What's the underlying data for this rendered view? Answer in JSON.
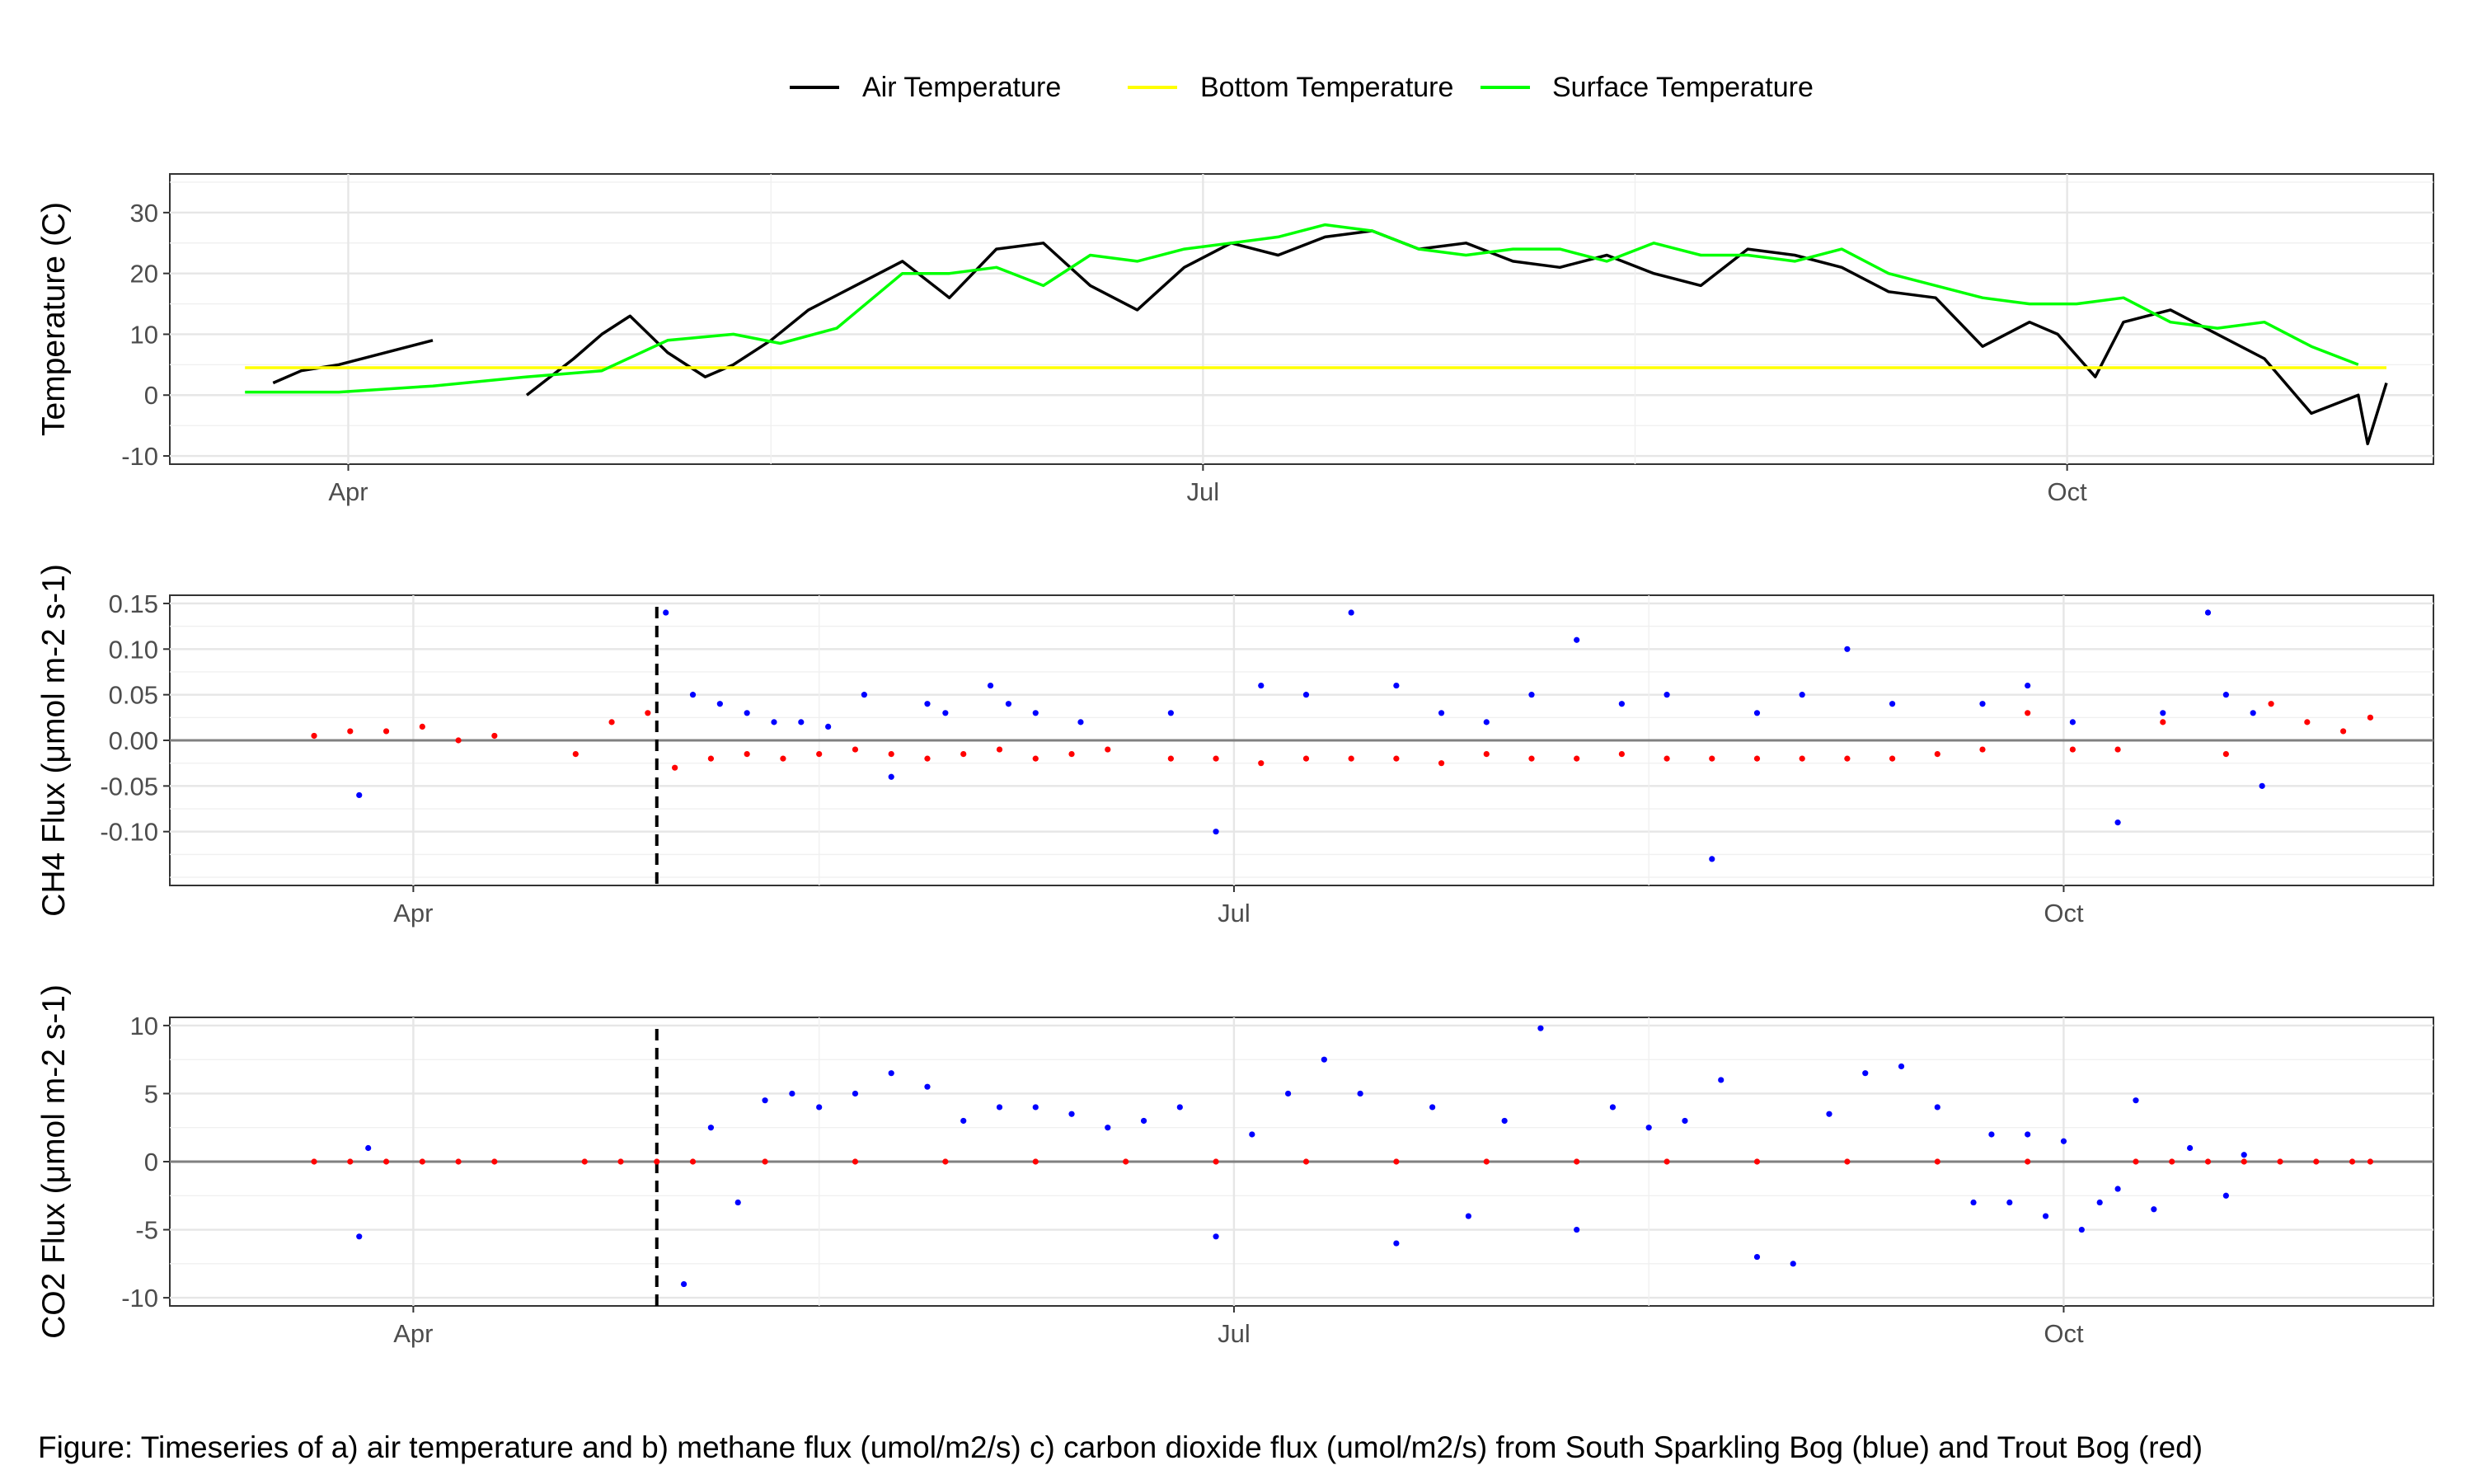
{
  "legend": {
    "items": [
      {
        "label": "Air Temperature",
        "color": "#000000"
      },
      {
        "label": "Bottom Temperature",
        "color": "#ffff00"
      },
      {
        "label": "Surface Temperature",
        "color": "#00ff00"
      }
    ]
  },
  "caption": "Figure: Timeseries of a) air temperature and b) methane flux (umol/m2/s) c) carbon dioxide flux (umol/m2/s) from South Sparkling Bog (blue) and Trout Bog (red)",
  "chart_data": [
    {
      "type": "line",
      "ylabel": "Temperature (C)",
      "xlabel": "",
      "ylim": [
        -10,
        35
      ],
      "yticks": [
        "30",
        "20",
        "10",
        "0",
        "-10"
      ],
      "xticks": [
        "Apr",
        "Jul",
        "Oct"
      ],
      "grid": true,
      "legend_position": "top",
      "series": [
        {
          "name": "Air Temperature",
          "color": "#000000",
          "x_day": [
            83,
            86,
            90,
            95,
            100,
            104,
            110,
            115,
            118,
            121,
            125,
            129,
            132,
            136,
            140,
            145,
            150,
            155,
            160,
            165,
            170,
            175,
            180,
            185,
            190,
            195,
            200,
            205,
            210,
            215,
            220,
            225,
            230,
            235,
            240,
            245,
            250,
            255,
            260,
            265,
            270,
            273,
            277,
            280,
            285,
            290,
            295,
            300,
            305,
            306,
            308
          ],
          "y": [
            2,
            4,
            5,
            7,
            9,
            null,
            0,
            6,
            10,
            13,
            7,
            3,
            5,
            9,
            14,
            18,
            22,
            16,
            24,
            25,
            18,
            14,
            21,
            25,
            23,
            26,
            27,
            24,
            25,
            22,
            21,
            23,
            20,
            18,
            24,
            23,
            21,
            17,
            16,
            8,
            12,
            10,
            3,
            12,
            14,
            10,
            6,
            -3,
            0,
            -8,
            2
          ]
        },
        {
          "name": "Bottom Temperature",
          "color": "#ffff00",
          "x_day": [
            80,
            308
          ],
          "y": [
            4.5,
            4.5
          ]
        },
        {
          "name": "Surface Temperature",
          "color": "#00ff00",
          "x_day": [
            80,
            90,
            100,
            110,
            118,
            125,
            132,
            137,
            143,
            150,
            155,
            160,
            165,
            170,
            175,
            180,
            185,
            190,
            195,
            200,
            205,
            210,
            215,
            220,
            225,
            230,
            235,
            240,
            245,
            250,
            255,
            260,
            265,
            270,
            275,
            280,
            285,
            290,
            295,
            300,
            305
          ],
          "y": [
            0.5,
            0.5,
            1.5,
            3,
            4,
            9,
            10,
            8.5,
            11,
            20,
            20,
            21,
            18,
            23,
            22,
            24,
            25,
            26,
            28,
            27,
            24,
            23,
            24,
            24,
            22,
            25,
            23,
            23,
            22,
            24,
            20,
            18,
            16,
            15,
            15,
            16,
            12,
            11,
            12,
            8,
            5
          ]
        }
      ]
    },
    {
      "type": "scatter",
      "ylabel": "CH4 Flux (μmol m-2 s-1)",
      "xlabel": "",
      "ylim": [
        -0.15,
        0.15
      ],
      "yticks": [
        "0.15",
        "0.10",
        "0.05",
        "0.00",
        "-0.05",
        "-0.10"
      ],
      "xticks": [
        "Apr",
        "Jul",
        "Oct"
      ],
      "vline_day": 118,
      "hline": 0,
      "series": [
        {
          "name": "South Sparkling Bog",
          "color": "#0000ff",
          "x_day": [
            85,
            119,
            122,
            125,
            128,
            131,
            134,
            137,
            141,
            144,
            148,
            150,
            155,
            157,
            160,
            165,
            175,
            180,
            185,
            190,
            195,
            200,
            205,
            210,
            215,
            220,
            225,
            230,
            235,
            240,
            245,
            250,
            255,
            265,
            270,
            275,
            280,
            285,
            290,
            292,
            295,
            296
          ],
          "y": [
            -0.06,
            0.14,
            0.05,
            0.04,
            0.03,
            0.02,
            0.02,
            0.015,
            0.05,
            -0.04,
            0.04,
            0.03,
            0.06,
            0.04,
            0.03,
            0.02,
            0.03,
            -0.1,
            0.06,
            0.05,
            0.14,
            0.06,
            0.03,
            0.02,
            0.05,
            0.11,
            0.04,
            0.05,
            -0.13,
            0.03,
            0.05,
            0.1,
            0.04,
            0.04,
            0.06,
            0.02,
            -0.09,
            0.03,
            0.14,
            0.05,
            0.03,
            -0.05
          ]
        },
        {
          "name": "Trout Bog",
          "color": "#ff0000",
          "x_day": [
            80,
            84,
            88,
            92,
            96,
            100,
            109,
            113,
            117,
            120,
            124,
            128,
            132,
            136,
            140,
            144,
            148,
            152,
            156,
            160,
            164,
            168,
            175,
            180,
            185,
            190,
            195,
            200,
            205,
            210,
            215,
            220,
            225,
            230,
            235,
            240,
            245,
            250,
            255,
            260,
            265,
            270,
            275,
            280,
            285,
            292,
            297,
            301,
            305,
            308
          ],
          "y": [
            0.005,
            0.01,
            0.01,
            0.015,
            0.0,
            0.005,
            -0.015,
            0.02,
            0.03,
            -0.03,
            -0.02,
            -0.015,
            -0.02,
            -0.015,
            -0.01,
            -0.015,
            -0.02,
            -0.015,
            -0.01,
            -0.02,
            -0.015,
            -0.01,
            -0.02,
            -0.02,
            -0.025,
            -0.02,
            -0.02,
            -0.02,
            -0.025,
            -0.015,
            -0.02,
            -0.02,
            -0.015,
            -0.02,
            -0.02,
            -0.02,
            -0.02,
            -0.02,
            -0.02,
            -0.015,
            -0.01,
            0.03,
            -0.01,
            -0.01,
            0.02,
            -0.015,
            0.04,
            0.02,
            0.01,
            0.025
          ]
        }
      ]
    },
    {
      "type": "scatter",
      "ylabel": "CO2 Flux (μmol m-2 s-1)",
      "xlabel": "",
      "ylim": [
        -10,
        10
      ],
      "yticks": [
        "10",
        "5",
        "0",
        "-5",
        "-10"
      ],
      "xticks": [
        "Apr",
        "Jul",
        "Oct"
      ],
      "vline_day": 118,
      "hline": 0,
      "series": [
        {
          "name": "South Sparkling Bog",
          "color": "#0000ff",
          "x_day": [
            85,
            86,
            121,
            124,
            127,
            130,
            133,
            136,
            140,
            144,
            148,
            152,
            156,
            160,
            164,
            168,
            172,
            176,
            180,
            184,
            188,
            192,
            196,
            200,
            204,
            208,
            212,
            216,
            220,
            224,
            228,
            232,
            236,
            240,
            244,
            248,
            252,
            256,
            260,
            264,
            266,
            268,
            270,
            272,
            274,
            276,
            278,
            280,
            282,
            284,
            288,
            292,
            294
          ],
          "y": [
            -5.5,
            1,
            -9,
            2.5,
            -3,
            4.5,
            5,
            4,
            5,
            6.5,
            5.5,
            3,
            4,
            4,
            3.5,
            2.5,
            3,
            4,
            -5.5,
            2,
            5,
            7.5,
            5,
            -6,
            4,
            -4,
            3,
            9.8,
            -5,
            4,
            2.5,
            3,
            6,
            -7,
            -7.5,
            3.5,
            6.5,
            7,
            4,
            -3,
            2,
            -3,
            2,
            -4,
            1.5,
            -5,
            -3,
            -2,
            4.5,
            -3.5,
            1,
            -2.5,
            0.5
          ]
        },
        {
          "name": "Trout Bog",
          "color": "#ff0000",
          "x_day": [
            80,
            84,
            88,
            92,
            96,
            100,
            110,
            114,
            118,
            122,
            130,
            140,
            150,
            160,
            170,
            180,
            190,
            200,
            210,
            220,
            230,
            240,
            250,
            260,
            270,
            282,
            286,
            290,
            294,
            298,
            302,
            306,
            308
          ],
          "y": [
            0,
            0,
            0,
            0,
            0,
            0,
            0,
            0,
            0,
            0,
            0,
            0,
            0,
            0,
            0,
            0,
            0,
            0,
            0,
            0,
            0,
            0,
            0,
            0,
            0,
            0,
            0,
            0,
            0,
            0,
            0,
            0,
            0
          ]
        }
      ]
    }
  ]
}
